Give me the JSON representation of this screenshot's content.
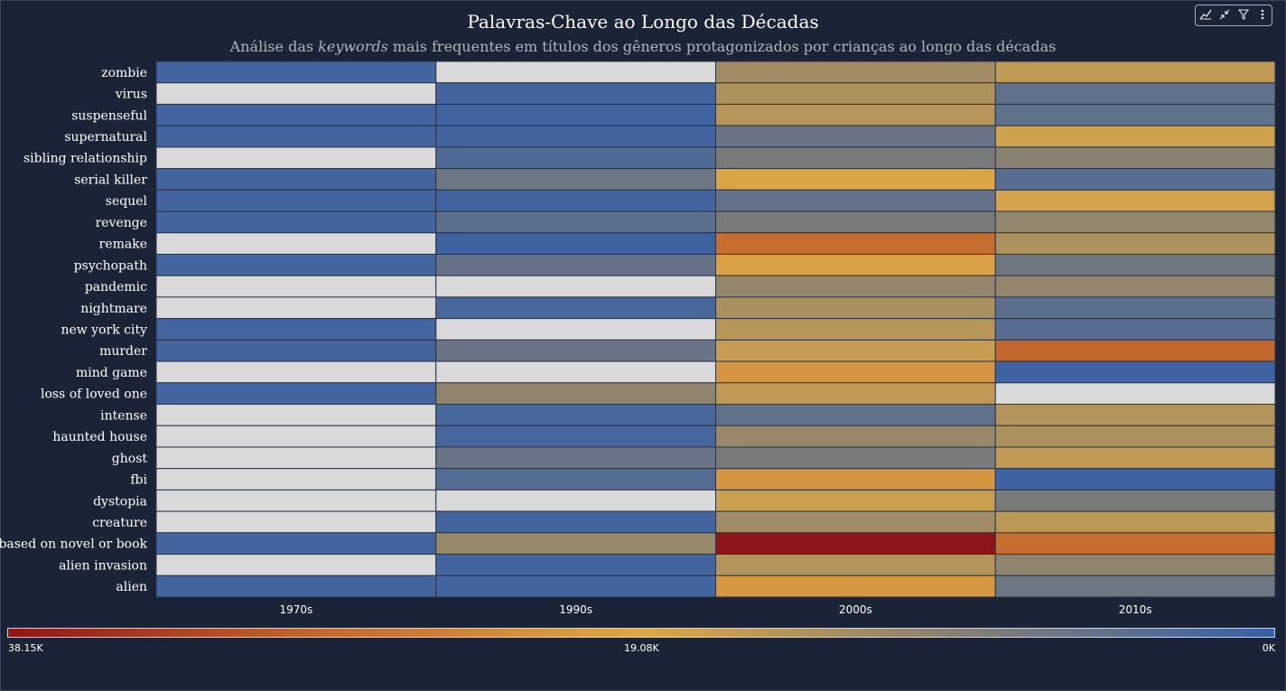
{
  "header": {
    "title": "Palavras-Chave ao Longo das Décadas",
    "subtitle_pre": "Análise das ",
    "subtitle_em": "keywords",
    "subtitle_post": " mais frequentes em títulos dos gêneros protagonizados por crianças ao longo das décadas"
  },
  "toolbar": {
    "icons": [
      "insights-icon",
      "collapse-icon",
      "filter-icon",
      "more-options-icon"
    ]
  },
  "legend": {
    "max_label": "38.15K",
    "mid_label": "19.08K",
    "min_label": "0K",
    "colors": [
      "#8e1618",
      "#c46a2e",
      "#dca746",
      "#868073",
      "#3760a6"
    ]
  },
  "chart_data": {
    "type": "heatmap",
    "title": "Palavras-Chave ao Longo das Décadas",
    "x": [
      "1970s",
      "1990s",
      "2000s",
      "2010s"
    ],
    "y": [
      "zombie",
      "virus",
      "suspenseful",
      "supernatural",
      "sibling relationship",
      "serial killer",
      "sequel",
      "revenge",
      "remake",
      "psychopath",
      "pandemic",
      "nightmare",
      "new york city",
      "murder",
      "mind game",
      "loss of loved one",
      "intense",
      "haunted house",
      "ghost",
      "fbi",
      "dystopia",
      "creature",
      "based on novel or book",
      "alien invasion",
      "alien"
    ],
    "values": [
      [
        1400,
        null,
        12500,
        16000
      ],
      [
        null,
        1400,
        14000,
        5000
      ],
      [
        1400,
        1200,
        15000,
        5000
      ],
      [
        1400,
        1300,
        6000,
        17500
      ],
      [
        null,
        3000,
        8000,
        10000
      ],
      [
        1400,
        6500,
        19500,
        4000
      ],
      [
        1400,
        1300,
        5500,
        18000
      ],
      [
        1400,
        4500,
        8000,
        11000
      ],
      [
        null,
        1000,
        28000,
        14000
      ],
      [
        1400,
        5500,
        20000,
        7000
      ],
      [
        null,
        null,
        11000,
        11000
      ],
      [
        null,
        2000,
        13500,
        4500
      ],
      [
        1400,
        null,
        15000,
        4000
      ],
      [
        1400,
        6000,
        16500,
        29000
      ],
      [
        null,
        null,
        22000,
        1000
      ],
      [
        1400,
        10500,
        16000,
        null
      ],
      [
        null,
        2000,
        5000,
        14500
      ],
      [
        null,
        1800,
        11500,
        14000
      ],
      [
        null,
        6000,
        8000,
        16000
      ],
      [
        null,
        3500,
        22000,
        1000
      ],
      [
        null,
        null,
        17000,
        8000
      ],
      [
        null,
        1500,
        12500,
        15500
      ],
      [
        1400,
        11500,
        38150,
        28000
      ],
      [
        null,
        1300,
        14500,
        10500
      ],
      [
        1400,
        1400,
        21500,
        6500
      ]
    ],
    "colorscale": {
      "min": 0,
      "max": 38150
    },
    "empty_color": "#d9d9d9"
  }
}
